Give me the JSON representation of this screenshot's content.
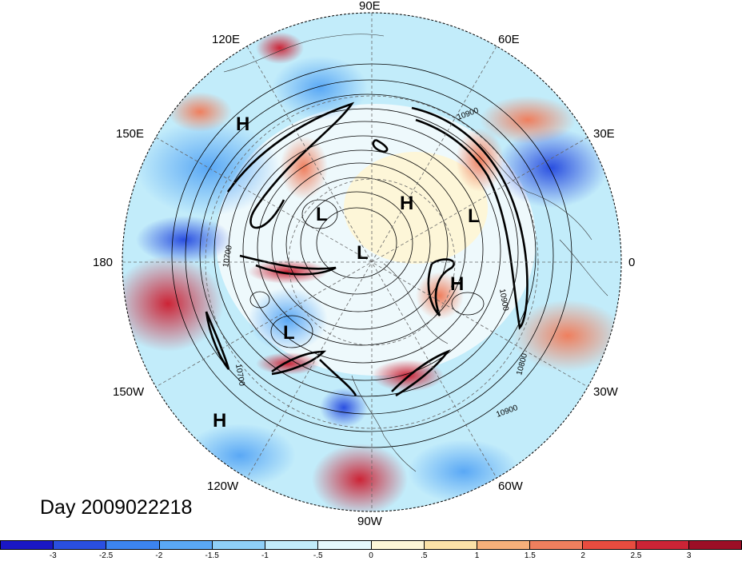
{
  "timestamp": "Day 2009022218",
  "longitude_labels": {
    "lon_90e": "90E",
    "lon_60e": "60E",
    "lon_30e": "30E",
    "lon_0": "0",
    "lon_30w": "30W",
    "lon_60w": "60W",
    "lon_90w": "90W",
    "lon_120w": "120W",
    "lon_150w": "150W",
    "lon_180": "180",
    "lon_150e": "150E",
    "lon_120e": "120E"
  },
  "pressure_centers": [
    {
      "name": "high-north-pacific",
      "label": "H"
    },
    {
      "name": "low-siberia",
      "label": "L"
    },
    {
      "name": "high-arctic",
      "label": "H"
    },
    {
      "name": "low-europe",
      "label": "L"
    },
    {
      "name": "low-pole",
      "label": "L"
    },
    {
      "name": "high-atlantic",
      "label": "H"
    },
    {
      "name": "low-alaska",
      "label": "L"
    },
    {
      "name": "high-east-pacific",
      "label": "H"
    }
  ],
  "contour_labels": {
    "c1": "10900",
    "c2": "10700",
    "c3": "10700",
    "c4": "10900",
    "c5": "10800",
    "c6": "10900"
  },
  "colorbar": {
    "colors": [
      "#1a17c4",
      "#2a4fe0",
      "#3c84ee",
      "#5aa8f5",
      "#8fd0f7",
      "#c2ecfa",
      "#e6f8fc",
      "#fdf6d8",
      "#fbe2a8",
      "#f6b07a",
      "#ef7f5e",
      "#e84c3f",
      "#cc2436",
      "#9c0f26"
    ],
    "ticks": [
      "-3",
      "-2.5",
      "-2",
      "-1.5",
      "-1",
      "-.5",
      "0",
      ".5",
      "1",
      "1.5",
      "2",
      "2.5",
      "3"
    ]
  }
}
